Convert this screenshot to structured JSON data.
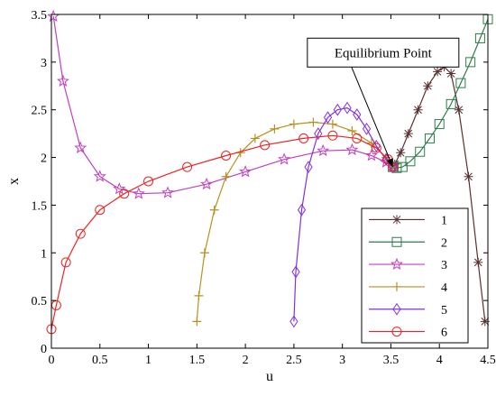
{
  "chart_data": {
    "type": "line",
    "xlabel": "u",
    "ylabel": "x",
    "xlim": [
      0,
      4.5
    ],
    "ylim": [
      0,
      3.5
    ],
    "xticks": [
      0,
      0.5,
      1,
      1.5,
      2,
      2.5,
      3,
      3.5,
      4,
      4.5
    ],
    "xtick_labels": [
      "0",
      "0.5",
      "1",
      "1.5",
      "2",
      "2.5",
      "3",
      "3.5",
      "4",
      "4.5"
    ],
    "yticks": [
      0,
      0.5,
      1,
      1.5,
      2,
      2.5,
      3,
      3.5
    ],
    "ytick_labels": [
      "0",
      "0.5",
      "1",
      "1.5",
      "2",
      "2.5",
      "3",
      "3.5"
    ],
    "grid": false,
    "legend_position": "bottom-right",
    "annotation": {
      "text": "Equilibrium Point",
      "target": [
        3.52,
        1.9
      ],
      "text_at": [
        3.42,
        3.1
      ]
    },
    "series": [
      {
        "name": "1",
        "color": "#5a3030",
        "marker": "asterisk",
        "x": [
          4.47,
          4.4,
          4.3,
          4.2,
          4.12,
          4.05,
          3.98,
          3.88,
          3.78,
          3.68,
          3.6,
          3.54,
          3.52
        ],
        "y": [
          0.28,
          0.9,
          1.8,
          2.5,
          2.88,
          2.95,
          2.9,
          2.75,
          2.5,
          2.25,
          2.05,
          1.93,
          1.9
        ]
      },
      {
        "name": "2",
        "color": "#2e7d4a",
        "marker": "square",
        "x": [
          4.5,
          4.42,
          4.32,
          4.22,
          4.12,
          4.0,
          3.9,
          3.8,
          3.7,
          3.62,
          3.56,
          3.52
        ],
        "y": [
          3.45,
          3.25,
          3.0,
          2.78,
          2.56,
          2.35,
          2.2,
          2.06,
          1.96,
          1.9,
          1.89,
          1.9
        ]
      },
      {
        "name": "3",
        "color": "#c040c0",
        "marker": "star",
        "x": [
          0.02,
          0.12,
          0.3,
          0.5,
          0.7,
          0.9,
          1.2,
          1.6,
          2.0,
          2.4,
          2.8,
          3.1,
          3.3,
          3.45,
          3.52
        ],
        "y": [
          3.48,
          2.8,
          2.1,
          1.8,
          1.67,
          1.62,
          1.63,
          1.72,
          1.85,
          1.98,
          2.07,
          2.08,
          2.02,
          1.95,
          1.9
        ]
      },
      {
        "name": "4",
        "color": "#b89020",
        "marker": "plus",
        "x": [
          1.5,
          1.52,
          1.58,
          1.68,
          1.8,
          1.95,
          2.1,
          2.3,
          2.5,
          2.7,
          2.9,
          3.1,
          3.3,
          3.45,
          3.52
        ],
        "y": [
          0.28,
          0.55,
          1.0,
          1.45,
          1.8,
          2.05,
          2.2,
          2.3,
          2.35,
          2.37,
          2.35,
          2.28,
          2.15,
          2.0,
          1.9
        ]
      },
      {
        "name": "5",
        "color": "#8030e0",
        "marker": "diamond",
        "x": [
          2.5,
          2.52,
          2.58,
          2.65,
          2.75,
          2.85,
          2.95,
          3.05,
          3.15,
          3.25,
          3.35,
          3.45,
          3.52
        ],
        "y": [
          0.28,
          0.8,
          1.45,
          1.9,
          2.25,
          2.42,
          2.5,
          2.52,
          2.45,
          2.3,
          2.12,
          1.98,
          1.9
        ]
      },
      {
        "name": "6",
        "color": "#ee2222",
        "marker": "circle",
        "x": [
          0.0,
          0.05,
          0.15,
          0.3,
          0.5,
          0.75,
          1.0,
          1.4,
          1.8,
          2.2,
          2.6,
          2.9,
          3.15,
          3.35,
          3.47,
          3.52
        ],
        "y": [
          0.2,
          0.45,
          0.9,
          1.2,
          1.45,
          1.62,
          1.75,
          1.9,
          2.02,
          2.13,
          2.2,
          2.23,
          2.2,
          2.1,
          1.98,
          1.9
        ]
      }
    ]
  }
}
